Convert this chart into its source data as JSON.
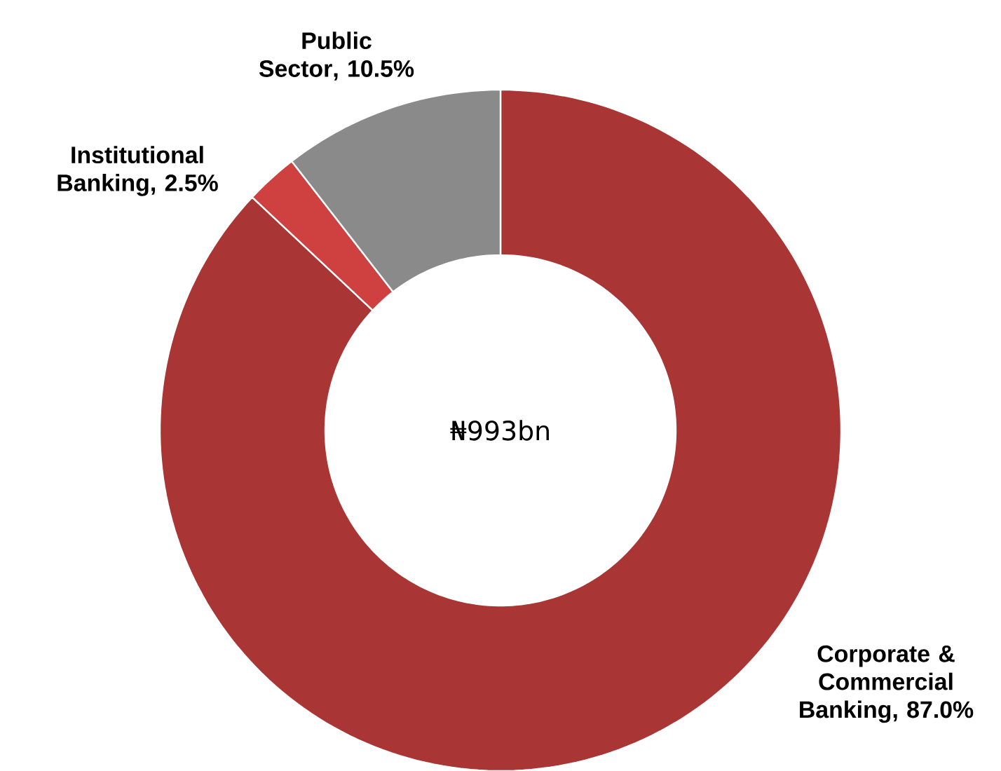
{
  "chart_data": {
    "type": "donut",
    "categories": [
      "Corporate & Commercial Banking",
      "Institutional Banking",
      "Public Sector"
    ],
    "values": [
      87.0,
      2.5,
      10.5
    ],
    "colors": [
      "#a93534",
      "#cf4141",
      "#8a8a8a"
    ],
    "value_labels": [
      ", 87.0%",
      ", 2.5%",
      ", 10.5%"
    ],
    "annotations": [
      "₦993bn"
    ]
  }
}
